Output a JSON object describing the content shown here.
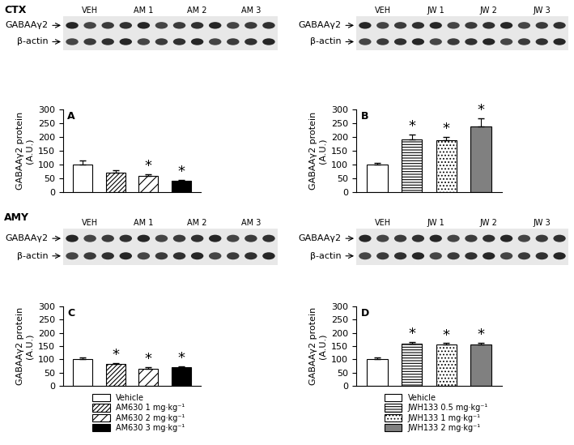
{
  "chart_data": [
    {
      "type": "bar",
      "panel": "A",
      "region": "CTX",
      "blot": {
        "rows": [
          "GABAAγ2",
          "β-actin"
        ],
        "lanes": [
          "VEH",
          "AM 1",
          "AM 2",
          "AM 3"
        ]
      },
      "ylabel": "GABAAγ2 protein\n(A.U.)",
      "ylim": [
        0,
        300
      ],
      "yticks": [
        0,
        50,
        100,
        150,
        200,
        250,
        300
      ],
      "tick_labels": "y",
      "legend": false,
      "series": [
        {
          "name": "Vehicle",
          "color": "#ffffff",
          "values": [
            100
          ],
          "error": [
            15
          ],
          "annotation": null
        },
        {
          "name": "AM630 1 mg·kg⁻¹",
          "color": "#ffffff",
          "values": [
            70
          ],
          "error": [
            8
          ],
          "annotation": null
        },
        {
          "name": "AM630 2 mg·kg⁻¹",
          "color": "#ffffff",
          "values": [
            60
          ],
          "error": [
            5
          ],
          "annotation": "*"
        },
        {
          "name": "AM630 3 mg·kg⁻¹",
          "color": "#000000",
          "values": [
            40
          ],
          "error": [
            5
          ],
          "annotation": "*"
        }
      ]
    },
    {
      "type": "bar",
      "panel": "B",
      "blot": {
        "rows": [
          "GABAAγ2",
          "β-actin"
        ],
        "lanes": [
          "VEH",
          "JW 1",
          "JW 2",
          "JW 3"
        ]
      },
      "ylabel": "GABAAγ2 protein\n(A.U.)",
      "ylim": [
        0,
        300
      ],
      "yticks": [
        0,
        50,
        100,
        150,
        200,
        250,
        300
      ],
      "tick_labels": "y",
      "legend": false,
      "series": [
        {
          "name": "Vehicle",
          "color": "#ffffff",
          "values": [
            100
          ],
          "error": [
            5
          ],
          "annotation": null
        },
        {
          "name": "JWH133 0.5 mg·kg⁻¹",
          "color": "#ffffff",
          "values": [
            190
          ],
          "error": [
            20
          ],
          "annotation": "*"
        },
        {
          "name": "JWH133 1 mg·kg⁻¹",
          "color": "#ffffff",
          "values": [
            188
          ],
          "error": [
            12
          ],
          "annotation": "*"
        },
        {
          "name": "JWH133 2 mg·kg⁻¹",
          "color": "#808080",
          "values": [
            238
          ],
          "error": [
            30
          ],
          "annotation": "*"
        }
      ]
    },
    {
      "type": "bar",
      "panel": "C",
      "region": "AMY",
      "blot": {
        "rows": [
          "GABAAγ2",
          "β-actin"
        ],
        "lanes": [
          "VEH",
          "AM 1",
          "AM 2",
          "AM 3"
        ]
      },
      "ylabel": "GABAAγ2 protein\n(A.U.)",
      "ylim": [
        0,
        300
      ],
      "yticks": [
        0,
        50,
        100,
        150,
        200,
        250,
        300
      ],
      "tick_labels": "y",
      "legend": "upper center",
      "series": [
        {
          "name": "Vehicle",
          "color": "#ffffff",
          "values": [
            100
          ],
          "error": [
            8
          ],
          "annotation": null
        },
        {
          "name": "AM630 1 mg·kg⁻¹",
          "color": "#ffffff",
          "values": [
            82
          ],
          "error": [
            5
          ],
          "annotation": "*"
        },
        {
          "name": "AM630 2 mg·kg⁻¹",
          "color": "#ffffff",
          "values": [
            65
          ],
          "error": [
            5
          ],
          "annotation": "*"
        },
        {
          "name": "AM630 3 mg·kg⁻¹",
          "color": "#000000",
          "values": [
            70
          ],
          "error": [
            5
          ],
          "annotation": "*"
        }
      ]
    },
    {
      "type": "bar",
      "panel": "D",
      "blot": {
        "rows": [
          "GABAAγ2",
          "β-actin"
        ],
        "lanes": [
          "VEH",
          "JW 1",
          "JW 2",
          "JW 3"
        ]
      },
      "ylabel": "GABAAγ2 protein\n(A.U.)",
      "ylim": [
        0,
        300
      ],
      "yticks": [
        0,
        50,
        100,
        150,
        200,
        250,
        300
      ],
      "tick_labels": "y",
      "legend": "upper center",
      "series": [
        {
          "name": "Vehicle",
          "color": "#ffffff",
          "values": [
            100
          ],
          "error": [
            7
          ],
          "annotation": null
        },
        {
          "name": "JWH133 0.5 mg·kg⁻¹",
          "color": "#ffffff",
          "values": [
            160
          ],
          "error": [
            5
          ],
          "annotation": "*"
        },
        {
          "name": "JWH133 1 mg·kg⁻¹",
          "color": "#ffffff",
          "values": [
            155
          ],
          "error": [
            6
          ],
          "annotation": "*"
        },
        {
          "name": "JWH133 2 mg·kg⁻¹",
          "color": "#808080",
          "values": [
            155
          ],
          "error": [
            8
          ],
          "annotation": "*"
        }
      ]
    }
  ]
}
